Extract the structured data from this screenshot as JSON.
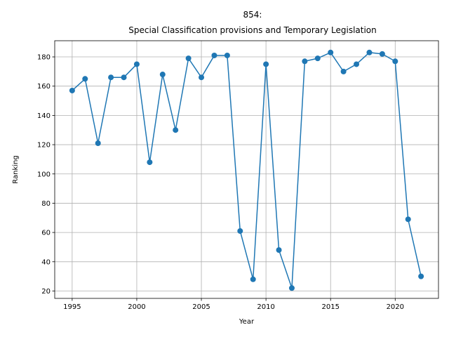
{
  "chart_data": {
    "type": "line",
    "title_line1": "854:",
    "title_line2": "Special Classification provisions and Temporary Legislation",
    "xlabel": "Year",
    "ylabel": "Ranking",
    "x": [
      1995,
      1996,
      1997,
      1998,
      1999,
      2000,
      2001,
      2002,
      2003,
      2004,
      2005,
      2006,
      2007,
      2008,
      2009,
      2010,
      2011,
      2012,
      2013,
      2014,
      2015,
      2016,
      2017,
      2018,
      2019,
      2020,
      2021,
      2022
    ],
    "series": [
      {
        "values": [
          157,
          165,
          121,
          166,
          166,
          175,
          108,
          168,
          130,
          179,
          166,
          181,
          181,
          61,
          28,
          175,
          48,
          22,
          177,
          179,
          183,
          170,
          175,
          183,
          182,
          177,
          69,
          30
        ],
        "color": "#1f77b4"
      }
    ],
    "xlim": [
      1993.65,
      2023.35
    ],
    "ylim": [
      14.95,
      191.05
    ],
    "xticks": [
      1995,
      2000,
      2005,
      2010,
      2015,
      2020
    ],
    "xtick_labels": [
      "1995",
      "2000",
      "2005",
      "2010",
      "2015",
      "2020"
    ],
    "yticks": [
      20,
      40,
      60,
      80,
      100,
      120,
      140,
      160,
      180
    ],
    "ytick_labels": [
      "20",
      "40",
      "60",
      "80",
      "100",
      "120",
      "140",
      "160",
      "180"
    ],
    "grid": true,
    "marker": "circle"
  }
}
